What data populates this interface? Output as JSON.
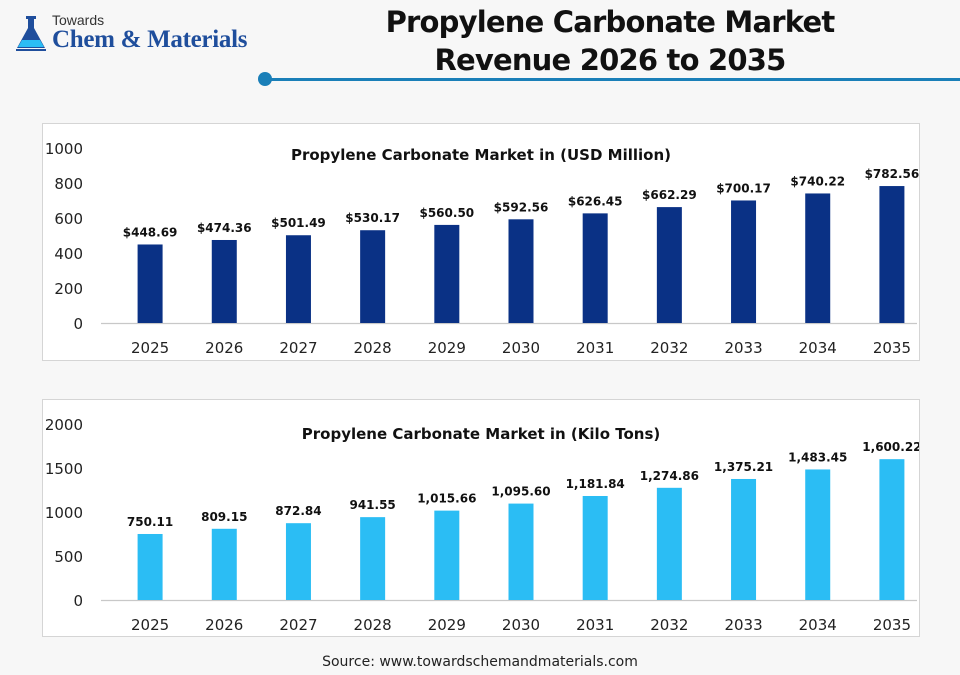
{
  "header": {
    "logo_top": "Towards",
    "logo_brand": "Chem & Materials",
    "title_line1": "Propylene Carbonate Market",
    "title_line2": "Revenue 2026 to 2035"
  },
  "colors": {
    "accent": "#1a7fb8",
    "revenue_bar": "#0a3185",
    "volume_bar": "#2bbdf4"
  },
  "chart_data": [
    {
      "type": "bar",
      "title": "Propylene Carbonate Market in (USD Million)",
      "categories": [
        "2025",
        "2026",
        "2027",
        "2028",
        "2029",
        "2030",
        "2031",
        "2032",
        "2033",
        "2034",
        "2035"
      ],
      "values": [
        448.69,
        474.36,
        501.49,
        530.17,
        560.5,
        592.56,
        626.45,
        662.29,
        700.17,
        740.22,
        782.56
      ],
      "data_labels": [
        "$448.69",
        "$474.36",
        "$501.49",
        "$530.17",
        "$560.50",
        "$592.56",
        "$626.45",
        "$662.29",
        "$700.17",
        "$740.22",
        "$782.56"
      ],
      "ylim": [
        0,
        1000
      ],
      "yticks": [
        "0",
        "200",
        "400",
        "600",
        "800",
        "1000"
      ],
      "grid": true
    },
    {
      "type": "bar",
      "title": "Propylene Carbonate Market in (Kilo Tons)",
      "categories": [
        "2025",
        "2026",
        "2027",
        "2028",
        "2029",
        "2030",
        "2031",
        "2032",
        "2033",
        "2034",
        "2035"
      ],
      "values": [
        750.11,
        809.15,
        872.84,
        941.55,
        1015.66,
        1095.6,
        1181.84,
        1274.86,
        1375.21,
        1483.45,
        1600.22
      ],
      "data_labels": [
        "750.11",
        "809.15",
        "872.84",
        "941.55",
        "1,015.66",
        "1,095.60",
        "1,181.84",
        "1,274.86",
        "1,375.21",
        "1,483.45",
        "1,600.22"
      ],
      "ylim": [
        0,
        2000
      ],
      "yticks": [
        "0",
        "500",
        "1000",
        "1500",
        "2000"
      ],
      "grid": true
    }
  ],
  "footer": {
    "source": "Source: www.towardschemandmaterials.com"
  }
}
